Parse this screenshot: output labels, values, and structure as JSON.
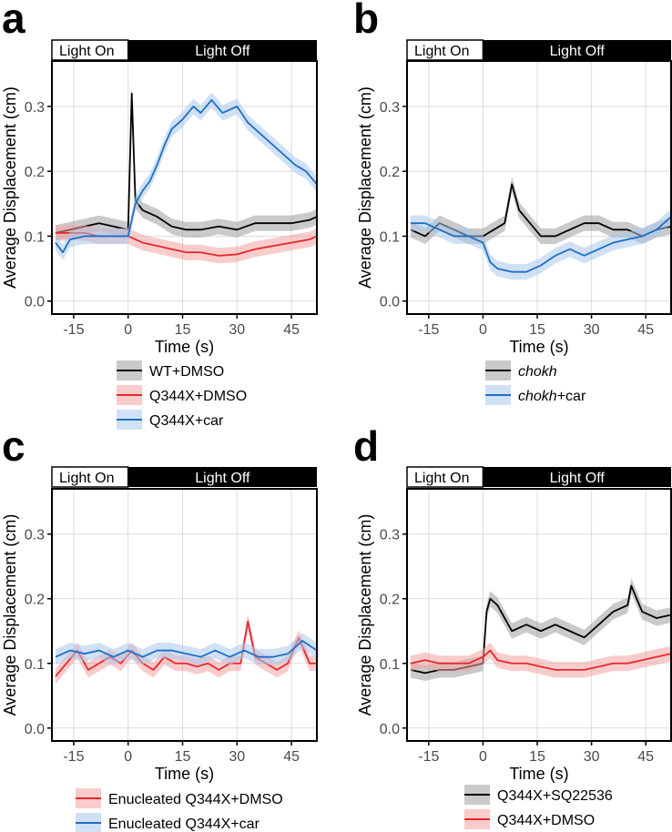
{
  "chart_data": [
    {
      "panel": "a",
      "type": "line",
      "light_bar": {
        "on_label": "Light On",
        "off_label": "Light Off"
      },
      "xlabel": "Time (s)",
      "ylabel": "Average Displacement (cm)",
      "xticks": [
        -15,
        0,
        15,
        30,
        45
      ],
      "yticks": [
        0.0,
        0.1,
        0.2,
        0.3
      ],
      "ytick_labels": [
        "0.0",
        "0.1",
        "0.2",
        "0.3"
      ],
      "xlim": [
        -21,
        52
      ],
      "ylim": [
        -0.02,
        0.37
      ],
      "grid": true,
      "legend": "below",
      "series": [
        {
          "name": "WT+DMSO",
          "color": "#000000",
          "band": "#9e9e9e",
          "x": [
            -20,
            -16,
            -12,
            -8,
            -4,
            0,
            1,
            2,
            4,
            8,
            12,
            16,
            20,
            25,
            30,
            35,
            40,
            45,
            50,
            52
          ],
          "values": [
            0.105,
            0.11,
            0.115,
            0.12,
            0.115,
            0.11,
            0.32,
            0.155,
            0.14,
            0.13,
            0.115,
            0.11,
            0.11,
            0.115,
            0.11,
            0.12,
            0.12,
            0.12,
            0.125,
            0.13
          ]
        },
        {
          "name": "Q344X+DMSO",
          "color": "#e8262b",
          "band": "#f4a3a3",
          "x": [
            -20,
            -16,
            -12,
            -8,
            -4,
            0,
            4,
            8,
            12,
            16,
            20,
            25,
            30,
            35,
            40,
            45,
            50,
            52
          ],
          "values": [
            0.105,
            0.105,
            0.105,
            0.1,
            0.1,
            0.1,
            0.09,
            0.085,
            0.08,
            0.075,
            0.075,
            0.07,
            0.072,
            0.08,
            0.085,
            0.09,
            0.095,
            0.1
          ]
        },
        {
          "name": "Q344X+car",
          "color": "#1f6fc4",
          "band": "#a9c8ec",
          "x": [
            -20,
            -18,
            -16,
            -12,
            -8,
            -4,
            0,
            2,
            4,
            6,
            8,
            10,
            12,
            15,
            18,
            20,
            23,
            26,
            30,
            33,
            36,
            40,
            43,
            46,
            49,
            52
          ],
          "values": [
            0.09,
            0.075,
            0.095,
            0.1,
            0.1,
            0.1,
            0.1,
            0.15,
            0.17,
            0.185,
            0.21,
            0.24,
            0.265,
            0.28,
            0.3,
            0.29,
            0.31,
            0.29,
            0.3,
            0.275,
            0.26,
            0.24,
            0.225,
            0.21,
            0.2,
            0.18
          ]
        }
      ]
    },
    {
      "panel": "b",
      "type": "line",
      "light_bar": {
        "on_label": "Light On",
        "off_label": "Light Off"
      },
      "xlabel": "Time (s)",
      "ylabel": "Average Displacement (cm)",
      "xticks": [
        -15,
        0,
        15,
        30,
        45
      ],
      "yticks": [
        0.0,
        0.1,
        0.2,
        0.3
      ],
      "ytick_labels": [
        "0.0",
        "0.1",
        "0.2",
        "0.3"
      ],
      "xlim": [
        -21,
        52
      ],
      "ylim": [
        -0.02,
        0.37
      ],
      "grid": true,
      "legend": "below",
      "series": [
        {
          "name": "chokh",
          "name_style": "italic",
          "color": "#000000",
          "band": "#9e9e9e",
          "x": [
            -20,
            -16,
            -12,
            -8,
            -4,
            0,
            3,
            6,
            8,
            10,
            13,
            16,
            20,
            24,
            28,
            32,
            36,
            40,
            44,
            48,
            52
          ],
          "values": [
            0.11,
            0.1,
            0.12,
            0.11,
            0.1,
            0.1,
            0.11,
            0.12,
            0.18,
            0.14,
            0.12,
            0.1,
            0.1,
            0.11,
            0.12,
            0.12,
            0.11,
            0.11,
            0.1,
            0.11,
            0.115
          ]
        },
        {
          "name": "chokh",
          "name_suffix": "+car",
          "name_style": "italic",
          "color": "#1f6fc4",
          "band": "#a9c8ec",
          "x": [
            -20,
            -16,
            -12,
            -8,
            -4,
            0,
            2,
            4,
            8,
            12,
            16,
            20,
            24,
            28,
            32,
            36,
            40,
            44,
            48,
            52
          ],
          "values": [
            0.12,
            0.12,
            0.11,
            0.1,
            0.1,
            0.09,
            0.06,
            0.05,
            0.045,
            0.045,
            0.055,
            0.07,
            0.08,
            0.07,
            0.08,
            0.09,
            0.095,
            0.1,
            0.11,
            0.13
          ]
        }
      ]
    },
    {
      "panel": "c",
      "type": "line",
      "light_bar": {
        "on_label": "Light On",
        "off_label": "Light Off"
      },
      "xlabel": "Time (s)",
      "ylabel": "Average Displacement (cm)",
      "xticks": [
        -15,
        0,
        15,
        30,
        45
      ],
      "yticks": [
        0.0,
        0.1,
        0.2,
        0.3
      ],
      "ytick_labels": [
        "0.0",
        "0.1",
        "0.2",
        "0.3"
      ],
      "xlim": [
        -21,
        52
      ],
      "ylim": [
        -0.02,
        0.37
      ],
      "grid": true,
      "legend": "below",
      "series": [
        {
          "name": "Enucleated Q344X+DMSO",
          "color": "#e8262b",
          "band": "#f4a3a3",
          "x": [
            -20,
            -17,
            -14,
            -11,
            -8,
            -5,
            -2,
            1,
            4,
            7,
            10,
            13,
            16,
            19,
            22,
            25,
            28,
            31,
            33,
            35,
            38,
            41,
            44,
            47,
            50,
            52
          ],
          "values": [
            0.08,
            0.1,
            0.12,
            0.09,
            0.1,
            0.11,
            0.1,
            0.12,
            0.1,
            0.09,
            0.11,
            0.1,
            0.1,
            0.095,
            0.1,
            0.09,
            0.1,
            0.1,
            0.165,
            0.11,
            0.1,
            0.09,
            0.1,
            0.14,
            0.1,
            0.1
          ]
        },
        {
          "name": "Enucleated Q344X+car",
          "color": "#1f6fc4",
          "band": "#a9c8ec",
          "x": [
            -20,
            -16,
            -12,
            -8,
            -4,
            0,
            4,
            8,
            12,
            16,
            20,
            24,
            28,
            32,
            36,
            40,
            44,
            48,
            52
          ],
          "values": [
            0.11,
            0.12,
            0.115,
            0.12,
            0.11,
            0.12,
            0.11,
            0.12,
            0.12,
            0.115,
            0.11,
            0.12,
            0.11,
            0.12,
            0.11,
            0.11,
            0.115,
            0.135,
            0.12
          ]
        }
      ]
    },
    {
      "panel": "d",
      "type": "line",
      "light_bar": {
        "on_label": "Light On",
        "off_label": "Light Off"
      },
      "xlabel": "Time (s)",
      "ylabel": "Average Displacement (cm)",
      "xticks": [
        -15,
        0,
        15,
        30,
        45
      ],
      "yticks": [
        0.0,
        0.1,
        0.2,
        0.3
      ],
      "ytick_labels": [
        "0.0",
        "0.1",
        "0.2",
        "0.3"
      ],
      "xlim": [
        -21,
        52
      ],
      "ylim": [
        -0.02,
        0.37
      ],
      "grid": true,
      "legend": "below",
      "series": [
        {
          "name": "Q344X+SQ22536",
          "color": "#000000",
          "band": "#9e9e9e",
          "x": [
            -20,
            -16,
            -12,
            -8,
            -4,
            0,
            1,
            2,
            4,
            6,
            8,
            12,
            16,
            20,
            24,
            28,
            32,
            36,
            40,
            41,
            44,
            48,
            52
          ],
          "values": [
            0.09,
            0.085,
            0.09,
            0.09,
            0.095,
            0.1,
            0.18,
            0.2,
            0.19,
            0.17,
            0.15,
            0.16,
            0.15,
            0.16,
            0.15,
            0.14,
            0.16,
            0.18,
            0.19,
            0.22,
            0.18,
            0.17,
            0.175
          ]
        },
        {
          "name": "Q344X+DMSO",
          "color": "#e8262b",
          "band": "#f4a3a3",
          "x": [
            -20,
            -16,
            -12,
            -8,
            -4,
            0,
            2,
            4,
            8,
            12,
            16,
            20,
            24,
            28,
            32,
            36,
            40,
            44,
            48,
            52
          ],
          "values": [
            0.1,
            0.105,
            0.1,
            0.1,
            0.1,
            0.11,
            0.12,
            0.105,
            0.1,
            0.1,
            0.095,
            0.09,
            0.09,
            0.09,
            0.095,
            0.1,
            0.1,
            0.105,
            0.11,
            0.115
          ]
        }
      ]
    }
  ]
}
